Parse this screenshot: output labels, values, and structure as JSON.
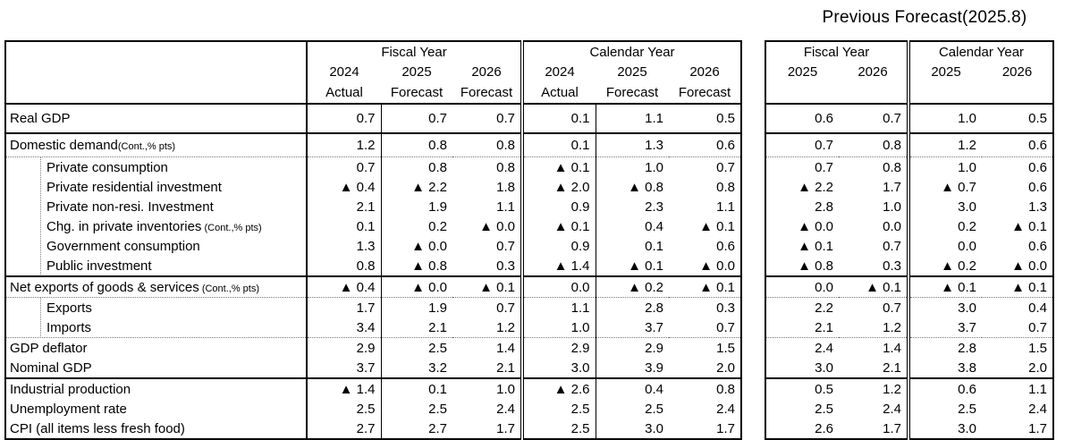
{
  "title": "Previous Forecast(2025.8)",
  "current": {
    "fiscal": {
      "label": "Fiscal Year",
      "years": [
        "2024",
        "2025",
        "2026"
      ],
      "kinds": [
        "Actual",
        "Forecast",
        "Forecast"
      ]
    },
    "calendar": {
      "label": "Calendar Year",
      "years": [
        "2024",
        "2025",
        "2026"
      ],
      "kinds": [
        "Actual",
        "Forecast",
        "Forecast"
      ]
    }
  },
  "previous": {
    "fiscal": {
      "label": "Fiscal Year",
      "years": [
        "2025",
        "2026"
      ]
    },
    "calendar": {
      "label": "Calendar Year",
      "years": [
        "2025",
        "2026"
      ]
    }
  },
  "negative_marker": "▲",
  "rows": [
    {
      "label": "Real GDP",
      "note": "",
      "fy": [
        "0.7",
        "0.7",
        "0.7"
      ],
      "cy": [
        "0.1",
        "1.1",
        "0.5"
      ],
      "pfy": [
        "0.6",
        "0.7"
      ],
      "pcy": [
        "1.0",
        "0.5"
      ]
    },
    {
      "label": "Domestic demand",
      "note": "(Cont.,% pts)",
      "fy": [
        "1.2",
        "0.8",
        "0.8"
      ],
      "cy": [
        "0.1",
        "1.3",
        "0.6"
      ],
      "pfy": [
        "0.7",
        "0.8"
      ],
      "pcy": [
        "1.2",
        "0.6"
      ]
    },
    {
      "label": "Private consumption",
      "note": "",
      "fy": [
        "0.7",
        "0.8",
        "0.8"
      ],
      "cy": [
        "▲ 0.1",
        "1.0",
        "0.7"
      ],
      "pfy": [
        "0.7",
        "0.8"
      ],
      "pcy": [
        "1.0",
        "0.6"
      ]
    },
    {
      "label": "Private residential investment",
      "note": "",
      "fy": [
        "▲ 0.4",
        "▲ 2.2",
        "1.8"
      ],
      "cy": [
        "▲ 2.0",
        "▲ 0.8",
        "0.8"
      ],
      "pfy": [
        "▲ 2.2",
        "1.7"
      ],
      "pcy": [
        "▲ 0.7",
        "0.6"
      ]
    },
    {
      "label": "Private non-resi. Investment",
      "note": "",
      "fy": [
        "2.1",
        "1.9",
        "1.1"
      ],
      "cy": [
        "0.9",
        "2.3",
        "1.1"
      ],
      "pfy": [
        "2.8",
        "1.0"
      ],
      "pcy": [
        "3.0",
        "1.3"
      ]
    },
    {
      "label": "Chg. in private inventories",
      "note": " (Cont.,% pts)",
      "fy": [
        "0.1",
        "0.2",
        "▲ 0.0"
      ],
      "cy": [
        "▲ 0.1",
        "0.4",
        "▲ 0.1"
      ],
      "pfy": [
        "▲ 0.0",
        "0.0"
      ],
      "pcy": [
        "0.2",
        "▲ 0.1"
      ]
    },
    {
      "label": "Government consumption",
      "note": "",
      "fy": [
        "1.3",
        "▲ 0.0",
        "0.7"
      ],
      "cy": [
        "0.9",
        "0.1",
        "0.6"
      ],
      "pfy": [
        "▲ 0.1",
        "0.7"
      ],
      "pcy": [
        "0.0",
        "0.6"
      ]
    },
    {
      "label": "Public investment",
      "note": "",
      "fy": [
        "0.8",
        "▲ 0.8",
        "0.3"
      ],
      "cy": [
        "▲ 1.4",
        "▲ 0.1",
        "▲ 0.0"
      ],
      "pfy": [
        "▲ 0.8",
        "0.3"
      ],
      "pcy": [
        "▲ 0.2",
        "▲ 0.0"
      ]
    },
    {
      "label": "Net exports of goods & services",
      "note": " (Cont.,% pts)",
      "fy": [
        "▲ 0.4",
        "▲ 0.0",
        "▲ 0.1"
      ],
      "cy": [
        "0.0",
        "▲ 0.2",
        "▲ 0.1"
      ],
      "pfy": [
        "0.0",
        "▲ 0.1"
      ],
      "pcy": [
        "▲ 0.1",
        "▲ 0.1"
      ]
    },
    {
      "label": "Exports",
      "note": "",
      "fy": [
        "1.7",
        "1.9",
        "0.7"
      ],
      "cy": [
        "1.1",
        "2.8",
        "0.3"
      ],
      "pfy": [
        "2.2",
        "0.7"
      ],
      "pcy": [
        "3.0",
        "0.4"
      ]
    },
    {
      "label": "Imports",
      "note": "",
      "fy": [
        "3.4",
        "2.1",
        "1.2"
      ],
      "cy": [
        "1.0",
        "3.7",
        "0.7"
      ],
      "pfy": [
        "2.1",
        "1.2"
      ],
      "pcy": [
        "3.7",
        "0.7"
      ]
    },
    {
      "label": "GDP deflator",
      "note": "",
      "fy": [
        "2.9",
        "2.5",
        "1.4"
      ],
      "cy": [
        "2.9",
        "2.9",
        "1.5"
      ],
      "pfy": [
        "2.4",
        "1.4"
      ],
      "pcy": [
        "2.8",
        "1.5"
      ]
    },
    {
      "label": "Nominal GDP",
      "note": "",
      "fy": [
        "3.7",
        "3.2",
        "2.1"
      ],
      "cy": [
        "3.0",
        "3.9",
        "2.0"
      ],
      "pfy": [
        "3.0",
        "2.1"
      ],
      "pcy": [
        "3.8",
        "2.0"
      ]
    },
    {
      "label": "Industrial production",
      "note": "",
      "fy": [
        "▲ 1.4",
        "0.1",
        "1.0"
      ],
      "cy": [
        "▲ 2.6",
        "0.4",
        "0.8"
      ],
      "pfy": [
        "0.5",
        "1.2"
      ],
      "pcy": [
        "0.6",
        "1.1"
      ]
    },
    {
      "label": "Unemployment rate",
      "note": "",
      "fy": [
        "2.5",
        "2.5",
        "2.4"
      ],
      "cy": [
        "2.5",
        "2.5",
        "2.4"
      ],
      "pfy": [
        "2.5",
        "2.4"
      ],
      "pcy": [
        "2.5",
        "2.4"
      ]
    },
    {
      "label": "CPI (all items less fresh food)",
      "note": "",
      "fy": [
        "2.7",
        "2.7",
        "1.7"
      ],
      "cy": [
        "2.5",
        "3.0",
        "1.7"
      ],
      "pfy": [
        "2.6",
        "1.7"
      ],
      "pcy": [
        "3.0",
        "1.7"
      ]
    }
  ]
}
